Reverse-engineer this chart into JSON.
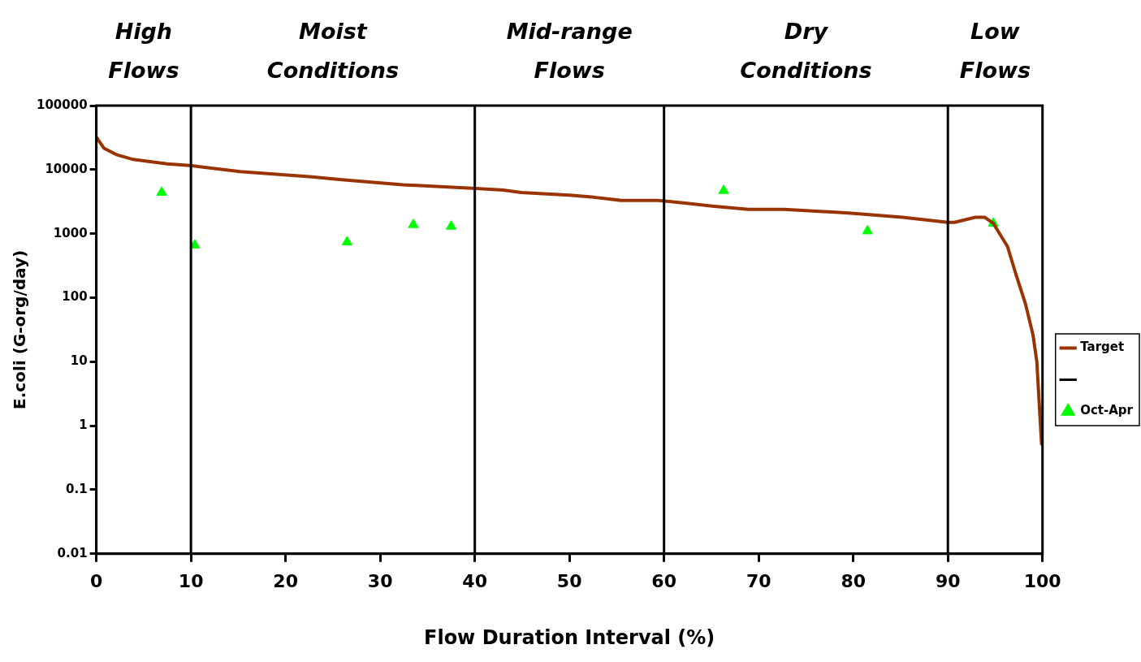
{
  "chart_data": {
    "type": "line",
    "xlabel": "Flow Duration Interval (%)",
    "ylabel": "E.coli (G-org/day)",
    "xlim": [
      0,
      100
    ],
    "xticks": [
      0,
      10,
      20,
      30,
      40,
      50,
      60,
      70,
      80,
      90,
      100
    ],
    "log": "y",
    "ylim": [
      0.01,
      100000
    ],
    "yticks": [
      0.01,
      0.1,
      1,
      10,
      100,
      1000,
      10000,
      100000
    ],
    "grid": false,
    "legend": "right",
    "series": [
      {
        "name": "Target",
        "type": "line",
        "color": "#993300",
        "marker": "none",
        "line_style": "solid",
        "x": [
          0,
          0.8,
          2.2,
          3.9,
          7.5,
          9.9,
          15.2,
          22.8,
          25.7,
          32.4,
          40.1,
          43,
          44.9,
          50,
          52.6,
          55.5,
          59.3,
          60.3,
          62.2,
          65.1,
          68.9,
          72.7,
          79.5,
          85.2,
          90,
          90.7,
          92.9,
          93.9,
          94.8,
          96.3,
          97.2,
          98.2,
          99,
          99.4,
          99.9
        ],
        "values": [
          32000,
          21600,
          17000,
          14400,
          12300,
          11600,
          9300,
          7700,
          7000,
          5800,
          5100,
          4800,
          4400,
          4000,
          3700,
          3300,
          3300,
          3200,
          3000,
          2700,
          2400,
          2400,
          2100,
          1800,
          1500,
          1500,
          1800,
          1800,
          1450,
          630,
          230,
          80,
          26,
          10,
          0.52
        ]
      },
      {
        "name": "Oct-Apr",
        "type": "scatter",
        "color": "#00ff00",
        "marker": "triangle",
        "x": [
          6.9,
          10.4,
          26.5,
          33.5,
          37.5,
          66.3,
          81.5,
          94.8
        ],
        "values": [
          4400,
          660,
          740,
          1380,
          1300,
          4700,
          1100,
          1450
        ]
      }
    ],
    "ref_lines": [
      {
        "axis": "x",
        "value": 10,
        "color": "#000000"
      },
      {
        "axis": "x",
        "value": 40,
        "color": "#000000"
      },
      {
        "axis": "x",
        "value": 60,
        "color": "#000000"
      },
      {
        "axis": "x",
        "value": 90,
        "color": "#000000"
      }
    ],
    "annotations": [
      "High Flows",
      "Moist Conditions",
      "Mid-range Flows",
      "Dry Conditions",
      "Low Flows"
    ]
  }
}
